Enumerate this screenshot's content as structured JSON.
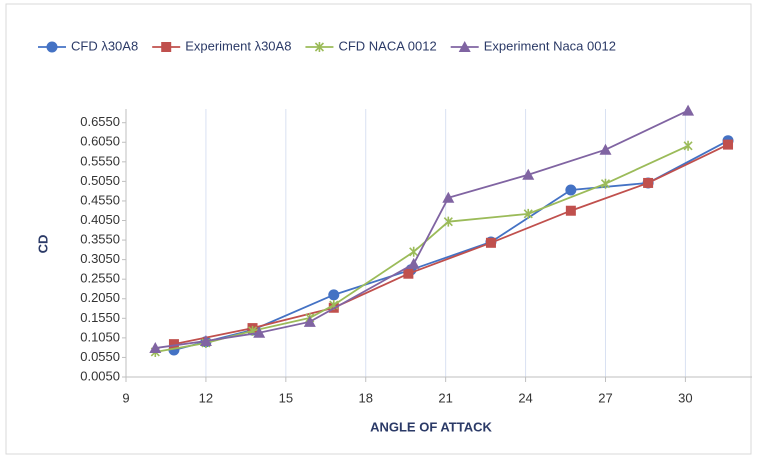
{
  "chart_data": {
    "type": "line",
    "xlabel": "ANGLE OF ATTACK",
    "ylabel": "CD",
    "xlim": [
      9,
      32.5
    ],
    "xticks": [
      9,
      12,
      15,
      18,
      21,
      24,
      27,
      30
    ],
    "ylim": [
      0.005,
      0.69
    ],
    "yticks": [
      {
        "value": 0.005,
        "label": "0.0050"
      },
      {
        "value": 0.055,
        "label": "0.0550"
      },
      {
        "value": 0.105,
        "label": "0.1050"
      },
      {
        "value": 0.155,
        "label": "0.1550"
      },
      {
        "value": 0.205,
        "label": "0.2050"
      },
      {
        "value": 0.255,
        "label": "0.2550"
      },
      {
        "value": 0.305,
        "label": "0.3050"
      },
      {
        "value": 0.355,
        "label": "0.3550"
      },
      {
        "value": 0.405,
        "label": "0.4050"
      },
      {
        "value": 0.455,
        "label": "0.4550"
      },
      {
        "value": 0.505,
        "label": "0.5050"
      },
      {
        "value": 0.555,
        "label": "0.5550"
      },
      {
        "value": 0.605,
        "label": "0.6050"
      },
      {
        "value": 0.655,
        "label": "0.6550"
      }
    ],
    "grid": "x",
    "legend": "top",
    "series": [
      {
        "name": "CFD λ30A8",
        "color": "#4472c4",
        "marker": "circle",
        "x": [
          10.8,
          12,
          13.75,
          16.8,
          19.7,
          22.7,
          25.7,
          28.6,
          31.6
        ],
        "values": [
          0.074,
          0.095,
          0.125,
          0.215,
          0.279,
          0.35,
          0.483,
          0.501,
          0.609
        ]
      },
      {
        "name": "Experiment λ30A8",
        "color": "#c0504d",
        "marker": "square",
        "x": [
          10.8,
          13.75,
          16.8,
          19.6,
          22.7,
          25.7,
          28.6,
          31.6
        ],
        "values": [
          0.089,
          0.13,
          0.182,
          0.269,
          0.348,
          0.43,
          0.501,
          0.599
        ]
      },
      {
        "name": "CFD NACA 0012",
        "color": "#9bbb59",
        "marker": "star",
        "x": [
          10.1,
          12,
          13.75,
          15.9,
          16.8,
          19.8,
          21.1,
          24.1,
          27.0,
          30.1
        ],
        "values": [
          0.069,
          0.092,
          0.123,
          0.156,
          0.189,
          0.325,
          0.402,
          0.422,
          0.499,
          0.596
        ]
      },
      {
        "name": "Experiment Naca 0012",
        "color": "#8064a2",
        "marker": "triangle",
        "x": [
          10.1,
          12,
          14,
          15.9,
          19.8,
          21.1,
          24.1,
          27.0,
          30.1
        ],
        "values": [
          0.079,
          0.097,
          0.118,
          0.146,
          0.294,
          0.463,
          0.522,
          0.586,
          0.686
        ]
      }
    ]
  }
}
